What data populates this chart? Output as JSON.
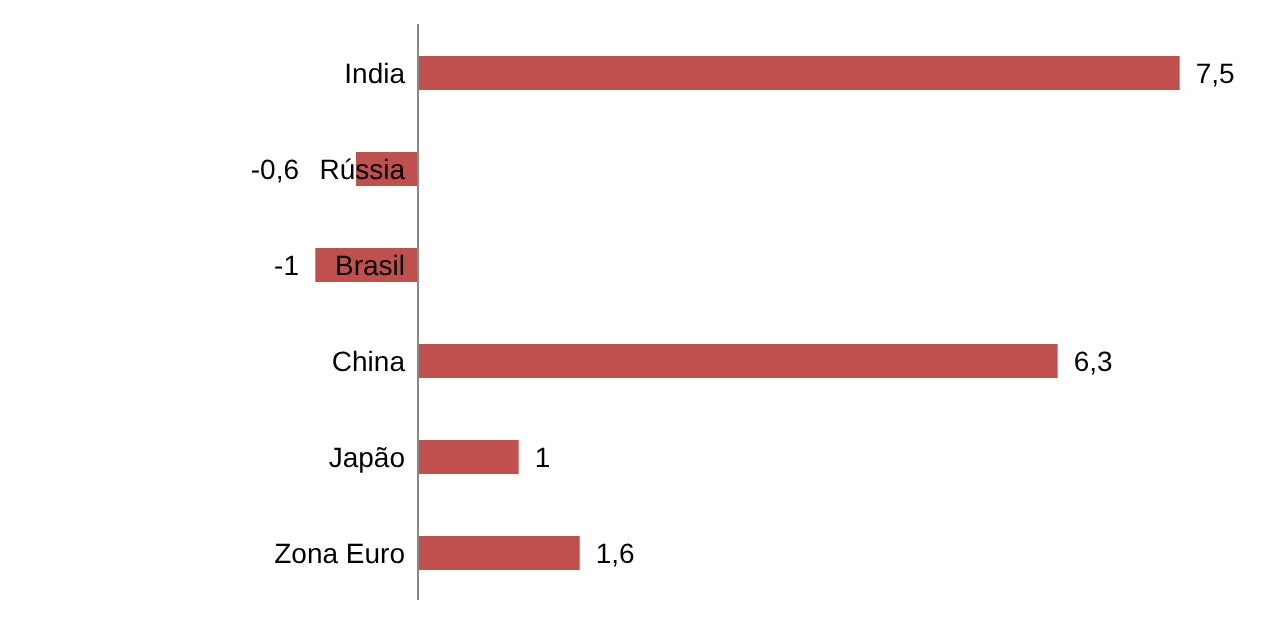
{
  "chart_data": {
    "type": "bar",
    "orientation": "horizontal",
    "categories": [
      "India",
      "Rússia",
      "Brasil",
      "China",
      "Japão",
      "Zona Euro"
    ],
    "values": [
      7.5,
      -0.6,
      -1,
      6.3,
      1,
      1.6
    ],
    "value_labels": [
      "7,5",
      "-0,6",
      "-1",
      "6,3",
      "1",
      "1,6"
    ],
    "color": "#c0504d"
  }
}
